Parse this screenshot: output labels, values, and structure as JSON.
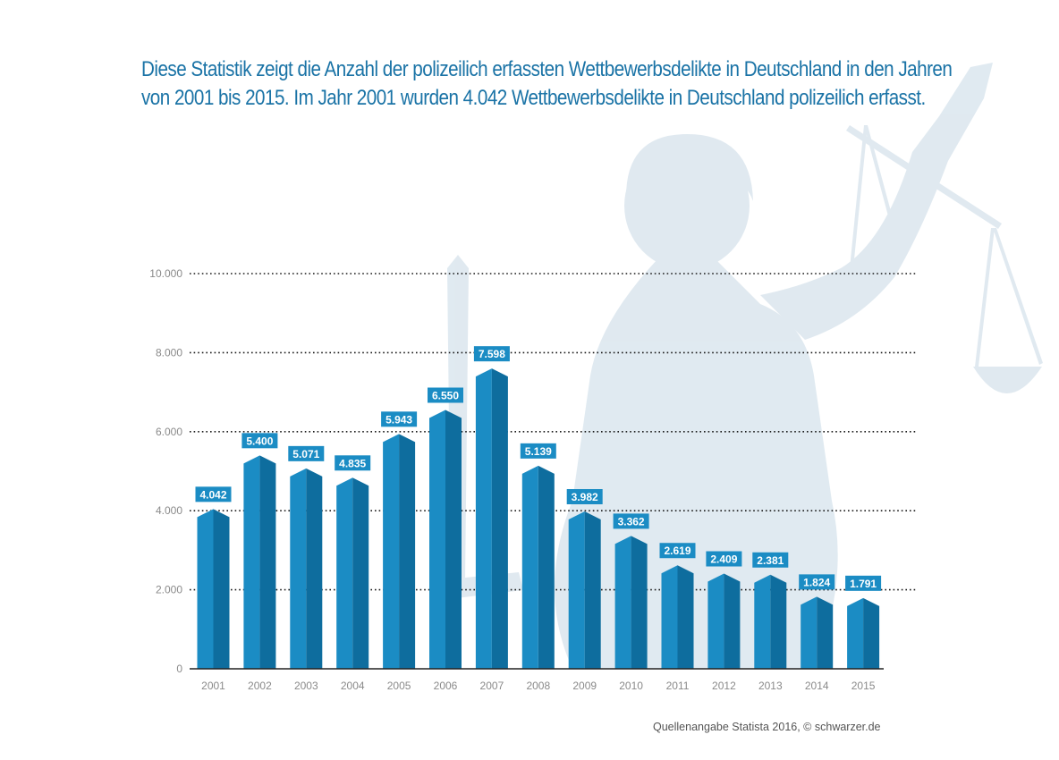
{
  "headline": {
    "line1": "Diese Statistik zeigt die Anzahl der polizeilich erfassten Wettbewerbsdelikte in Deutschland in den Jahren",
    "line2": "von 2001 bis 2015. Im Jahr 2001 wurden 4.042 Wettbewerbsdelikte in Deutschland polizeilich erfasst."
  },
  "source": "Quellenangabe Statista 2016, © schwarzer.de",
  "colors": {
    "headline": "#1a73a6",
    "bar_front": "#1b8cc4",
    "bar_side": "#0e6d9e",
    "label_bg": "#1b8cc4",
    "watermark": "#dbe6ee"
  },
  "background_image": "justitia-statue-watermark",
  "chart_data": {
    "type": "bar",
    "categories": [
      "2001",
      "2002",
      "2003",
      "2004",
      "2005",
      "2006",
      "2007",
      "2008",
      "2009",
      "2010",
      "2011",
      "2012",
      "2013",
      "2014",
      "2015"
    ],
    "values": [
      4042,
      5400,
      5071,
      4835,
      5943,
      6550,
      7598,
      5139,
      3982,
      3362,
      2619,
      2409,
      2381,
      1824,
      1791
    ],
    "value_labels": [
      "4.042",
      "5.400",
      "5.071",
      "4.835",
      "5.943",
      "6.550",
      "7.598",
      "5.139",
      "3.982",
      "3.362",
      "2.619",
      "2.409",
      "2.381",
      "1.824",
      "1.791"
    ],
    "yticks": [
      0,
      2000,
      4000,
      6000,
      8000,
      10000
    ],
    "ytick_labels": [
      "0",
      "2.000",
      "4.000",
      "6.000",
      "8.000",
      "10.000"
    ],
    "ylim": [
      0,
      10000
    ],
    "grid": "horizontal-dotted",
    "legend": "none"
  }
}
